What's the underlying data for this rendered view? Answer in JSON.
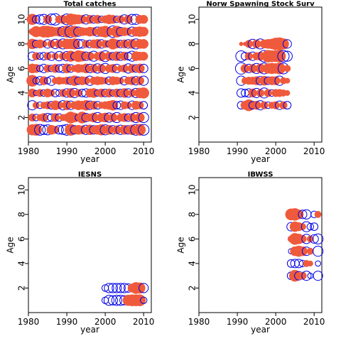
{
  "colors": {
    "positive": "#f05a3c",
    "negative": "#0000e6",
    "axis": "#000000"
  },
  "chart_data": [
    {
      "type": "scatter",
      "title": "Total catches",
      "xlabel": "year",
      "ylabel": "Age",
      "xlim": [
        1980,
        2012
      ],
      "ylim": [
        0,
        11
      ],
      "x_ticks": [
        1980,
        1990,
        2000,
        2010
      ],
      "y_ticks": [
        2,
        4,
        6,
        8,
        10
      ],
      "years": [
        1981,
        1982,
        1983,
        1984,
        1985,
        1986,
        1987,
        1988,
        1989,
        1990,
        1991,
        1992,
        1993,
        1994,
        1995,
        1996,
        1997,
        1998,
        1999,
        2000,
        2001,
        2002,
        2003,
        2004,
        2005,
        2006,
        2007,
        2008,
        2009,
        2010
      ],
      "ages": [
        1,
        2,
        3,
        4,
        5,
        6,
        7,
        8,
        9,
        10
      ],
      "residuals": [
        [
          0.8,
          0.4,
          -0.6,
          0.5,
          0.9,
          0.6,
          -0.5,
          0.7,
          0.3,
          0.8
        ],
        [
          0.9,
          -0.3,
          0.3,
          -0.2,
          -0.3,
          0.5,
          0.4,
          -0.4,
          0.8,
          -0.4
        ],
        [
          -0.8,
          0.3,
          -0.3,
          0.4,
          -0.5,
          -0.3,
          -0.3,
          0.5,
          0.6,
          -0.6
        ],
        [
          -0.6,
          0.5,
          0.3,
          -0.3,
          0.5,
          -0.5,
          -0.4,
          0.3,
          0.9,
          -0.7
        ],
        [
          -0.7,
          -0.5,
          0.4,
          0.5,
          -0.3,
          0.4,
          0.4,
          -0.5,
          0.9,
          0.5
        ],
        [
          0.6,
          -0.4,
          -0.4,
          0.3,
          -0.6,
          -0.3,
          -0.5,
          0.4,
          0.7,
          -0.8
        ],
        [
          0.4,
          0.5,
          0.6,
          -0.4,
          0.3,
          0.5,
          0.3,
          -0.6,
          0.5,
          -0.9
        ],
        [
          -0.5,
          -0.4,
          0.4,
          -0.3,
          0.4,
          -0.4,
          -0.6,
          0.5,
          0.6,
          0.4
        ],
        [
          -0.6,
          0.3,
          -0.6,
          0.4,
          0.3,
          -0.5,
          0.4,
          -0.7,
          -0.7,
          0.5
        ],
        [
          -0.8,
          0.4,
          0.6,
          -0.5,
          0.4,
          0.6,
          -0.6,
          0.7,
          0.9,
          -0.8
        ],
        [
          0.9,
          0.9,
          -0.5,
          0.6,
          -0.4,
          -0.4,
          0.8,
          0.7,
          -0.9,
          0.9
        ],
        [
          -0.5,
          0.6,
          0.4,
          -0.6,
          0.7,
          0.3,
          -0.4,
          0.8,
          0.9,
          0.7
        ],
        [
          0.6,
          -0.3,
          0.6,
          0.4,
          -0.4,
          0.5,
          0.9,
          -0.6,
          -0.6,
          0.6
        ],
        [
          0.5,
          0.9,
          0.5,
          -0.4,
          0.5,
          0.4,
          0.7,
          -0.5,
          0.5,
          0.5
        ],
        [
          -0.6,
          -0.5,
          0.7,
          -0.5,
          0.4,
          0.6,
          -0.5,
          0.4,
          0.4,
          -0.6
        ],
        [
          0.7,
          0.4,
          -0.5,
          0.5,
          -0.6,
          -0.5,
          0.5,
          -0.4,
          0.6,
          0.5
        ],
        [
          -0.5,
          0.6,
          0.5,
          0.6,
          0.4,
          0.5,
          -0.7,
          0.5,
          0.5,
          -0.4
        ],
        [
          0.6,
          -0.7,
          -0.4,
          -0.3,
          0.5,
          -0.6,
          0.4,
          0.6,
          -0.6,
          0.5
        ],
        [
          0.8,
          0.5,
          0.3,
          0.5,
          0.4,
          0.5,
          0.6,
          -0.5,
          0.7,
          -0.3
        ],
        [
          -0.7,
          0.6,
          0.4,
          -0.4,
          0.3,
          -0.7,
          -0.8,
          0.4,
          0.9,
          0.4
        ],
        [
          0.6,
          -0.6,
          0.5,
          0.5,
          -0.4,
          0.4,
          0.5,
          -0.3,
          0.5,
          0.6
        ],
        [
          -0.5,
          0.5,
          0.7,
          -0.3,
          0.5,
          0.5,
          -0.4,
          0.8,
          -0.9,
          0.5
        ],
        [
          0.5,
          -0.7,
          -0.4,
          0.5,
          0.4,
          -0.5,
          0.6,
          0.5,
          0.9,
          -0.3
        ],
        [
          -0.6,
          0.4,
          -0.5,
          -0.4,
          0.3,
          0.3,
          -0.5,
          -0.4,
          -0.5,
          0.4
        ],
        [
          0.6,
          0.5,
          0.4,
          0.6,
          -0.5,
          0.4,
          0.5,
          0.5,
          0.5,
          -0.6
        ],
        [
          -0.5,
          -0.4,
          0.3,
          -0.5,
          0.4,
          -0.6,
          -0.4,
          -0.5,
          0.4,
          0.5
        ],
        [
          0.7,
          0.5,
          -0.5,
          0.4,
          0.5,
          0.5,
          -0.7,
          0.6,
          -0.6,
          -0.7
        ],
        [
          -0.8,
          -0.7,
          0.5,
          -0.6,
          -0.5,
          -0.4,
          0.6,
          -0.7,
          0.6,
          -0.7
        ],
        [
          0.9,
          0.6,
          0.4,
          0.7,
          0.5,
          0.6,
          0.5,
          0.6,
          0.7,
          0.5
        ],
        [
          -0.8,
          -0.7,
          -0.4,
          0.8,
          -0.6,
          -0.5,
          0.5,
          0.6,
          0.6,
          0.5
        ]
      ]
    },
    {
      "type": "scatter",
      "title": "Norw Spawning Stock Surv",
      "xlabel": "year",
      "ylabel": "Age",
      "xlim": [
        1980,
        2012
      ],
      "ylim": [
        0,
        11
      ],
      "x_ticks": [
        1980,
        1990,
        2000,
        2010
      ],
      "y_ticks": [
        2,
        4,
        6,
        8,
        10
      ],
      "years": [
        1991,
        1992,
        1993,
        1994,
        1995,
        1996,
        1997,
        1998,
        1999,
        2000,
        2001,
        2002,
        2003
      ],
      "ages": [
        3,
        4,
        5,
        6,
        7,
        8
      ],
      "residuals": [
        [
          -0.4,
          -0.5,
          -0.6,
          -0.9,
          -0.8,
          0.1
        ],
        [
          0.5,
          -0.4,
          0.3,
          0.5,
          -0.4,
          0.1
        ],
        [
          0.9,
          -0.5,
          0.4,
          -0.5,
          0.4,
          0.4
        ],
        [
          -0.4,
          0.5,
          0.4,
          0.5,
          -0.5,
          -0.6
        ],
        [
          0.5,
          -0.6,
          0.5,
          -0.7,
          0.4,
          0.5
        ],
        [
          -0.6,
          0.4,
          -0.5,
          0.6,
          0.5,
          -0.7
        ],
        [
          0.4,
          -0.7,
          0.6,
          -0.8,
          -0.9,
          0.5
        ],
        [
          -0.3,
          0.4,
          -0.4,
          0.7,
          1.0,
          0.6
        ],
        [
          0.3,
          -0.3,
          0.5,
          0.8,
          0.9,
          0.7
        ],
        [
          0.4,
          0.4,
          0.5,
          0.7,
          0.9,
          1.0
        ],
        [
          -0.5,
          0.4,
          -0.6,
          0.9,
          1.0,
          1.1
        ],
        [
          0.4,
          0.3,
          0.3,
          -0.8,
          -0.9,
          0.8
        ],
        [
          -0.4,
          0.2,
          0.2,
          0.3,
          -0.7,
          -0.5
        ]
      ]
    },
    {
      "type": "scatter",
      "title": "IESNS",
      "xlabel": "year",
      "ylabel": "Age",
      "xlim": [
        1980,
        2012
      ],
      "ylim": [
        0,
        11
      ],
      "x_ticks": [
        1980,
        1990,
        2000,
        2010
      ],
      "y_ticks": [
        2,
        4,
        6,
        8,
        10
      ],
      "years": [
        2000,
        2001,
        2002,
        2003,
        2004,
        2005,
        2006,
        2007,
        2008,
        2009,
        2010
      ],
      "ages": [
        1,
        2
      ],
      "residuals": [
        [
          -0.3,
          -0.3
        ],
        [
          -0.7,
          -0.6
        ],
        [
          -0.6,
          -0.6
        ],
        [
          -0.7,
          -0.6
        ],
        [
          -0.7,
          -0.6
        ],
        [
          -0.6,
          -0.6
        ],
        [
          0.8,
          -0.5
        ],
        [
          0.9,
          0.5
        ],
        [
          0.9,
          0.9
        ],
        [
          0.9,
          0.8
        ],
        [
          -0.3,
          -0.6
        ]
      ]
    },
    {
      "type": "scatter",
      "title": "IBWSS",
      "xlabel": "year",
      "ylabel": "Age",
      "xlim": [
        1980,
        2012
      ],
      "ylim": [
        0,
        11
      ],
      "x_ticks": [
        1980,
        1990,
        2000,
        2010
      ],
      "y_ticks": [
        2,
        4,
        6,
        8,
        10
      ],
      "years": [
        2004,
        2005,
        2006,
        2007,
        2008,
        2009,
        2010,
        2011
      ],
      "ages": [
        3,
        4,
        5,
        6,
        7,
        8
      ],
      "residuals": [
        [
          -0.4,
          -0.4,
          -0.2,
          0.3,
          -0.5,
          0.9
        ],
        [
          0.9,
          -0.5,
          0.6,
          0.9,
          0.7,
          1.0
        ],
        [
          -0.5,
          -0.5,
          0.8,
          0.7,
          0.5,
          0.6
        ],
        [
          0.4,
          -0.3,
          0.6,
          0.4,
          0.3,
          -0.5
        ],
        [
          -0.6,
          0.3,
          -0.5,
          -0.6,
          -0.7,
          -0.6
        ],
        [
          -0.2,
          0.2,
          0.3,
          0.3,
          -0.3,
          0.0
        ],
        [
          0.0,
          0.0,
          0.0,
          -0.5,
          -0.4,
          -0.3
        ],
        [
          -0.6,
          -0.2,
          -0.7,
          -0.7,
          0.0,
          0.3
        ]
      ]
    }
  ]
}
